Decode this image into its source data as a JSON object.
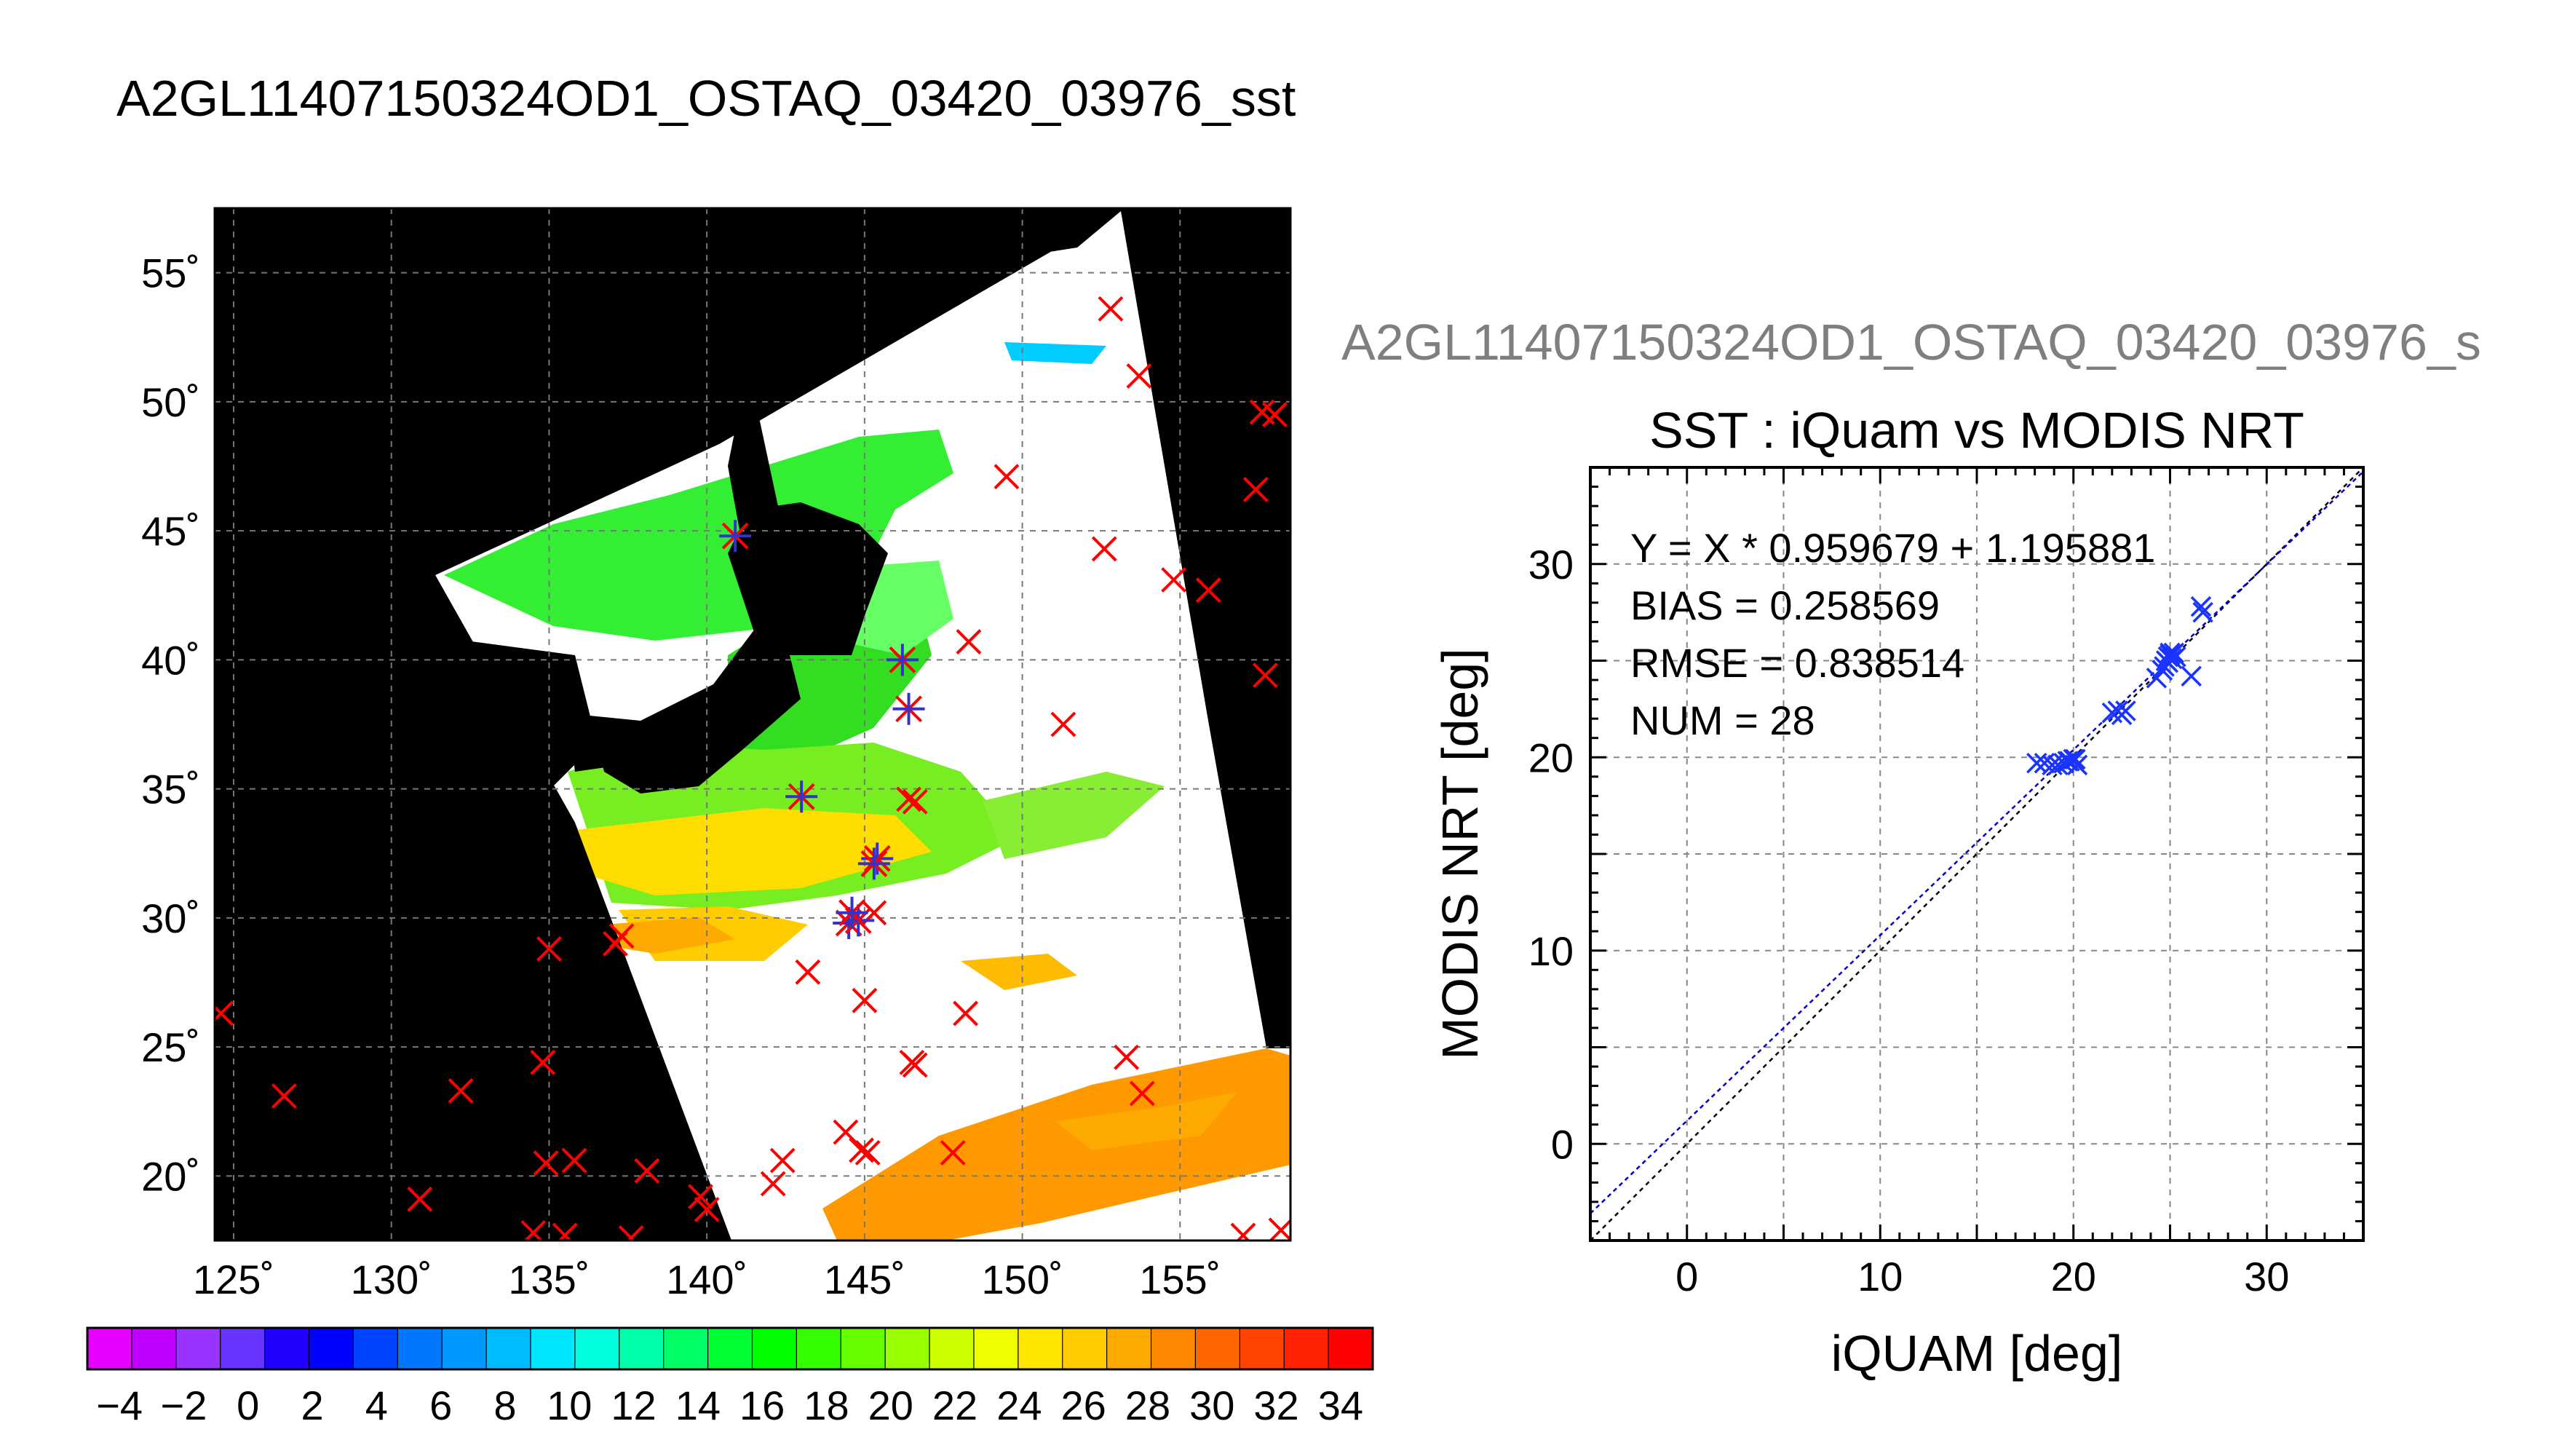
{
  "title": "A2GL11407150324OD1_OSTAQ_03420_03976_sst",
  "map": {
    "lon_ticks": [
      125,
      130,
      135,
      140,
      145,
      150,
      155
    ],
    "lat_ticks": [
      20,
      25,
      30,
      35,
      40,
      45,
      50,
      55
    ],
    "lon_labels": [
      "125˚",
      "130˚",
      "135˚",
      "140˚",
      "145˚",
      "150˚",
      "155˚"
    ],
    "lat_labels": [
      "20˚",
      "25˚",
      "30˚",
      "35˚",
      "40˚",
      "45˚",
      "50˚",
      "55˚"
    ],
    "lon_range": [
      124.4,
      158.5
    ],
    "lat_range": [
      17.5,
      57.5
    ],
    "matched_points": [
      [
        140.9,
        44.8
      ],
      [
        146.2,
        40.0
      ],
      [
        146.4,
        38.1
      ],
      [
        143.0,
        34.7
      ],
      [
        145.4,
        32.3
      ],
      [
        145.3,
        32.1
      ],
      [
        144.5,
        29.8
      ],
      [
        144.8,
        29.9
      ],
      [
        144.6,
        30.2
      ]
    ],
    "unmatched_points": [
      [
        152.8,
        53.6
      ],
      [
        153.7,
        51.0
      ],
      [
        157.6,
        49.6
      ],
      [
        158.0,
        49.5
      ],
      [
        157.4,
        46.6
      ],
      [
        149.5,
        47.1
      ],
      [
        152.6,
        44.3
      ],
      [
        154.8,
        43.1
      ],
      [
        155.9,
        42.7
      ],
      [
        157.7,
        39.4
      ],
      [
        148.3,
        40.7
      ],
      [
        151.3,
        37.5
      ],
      [
        146.4,
        34.6
      ],
      [
        146.6,
        34.5
      ],
      [
        145.3,
        30.2
      ],
      [
        143.2,
        27.9
      ],
      [
        145.0,
        26.8
      ],
      [
        148.2,
        26.3
      ],
      [
        146.5,
        24.4
      ],
      [
        146.6,
        24.3
      ],
      [
        153.3,
        24.6
      ],
      [
        153.8,
        23.2
      ],
      [
        135.0,
        28.8
      ],
      [
        137.3,
        29.3
      ],
      [
        137.1,
        29.0
      ],
      [
        124.6,
        26.3
      ],
      [
        126.6,
        23.1
      ],
      [
        132.2,
        23.3
      ],
      [
        134.8,
        24.4
      ],
      [
        134.9,
        20.5
      ],
      [
        135.8,
        20.6
      ],
      [
        138.1,
        20.2
      ],
      [
        130.9,
        19.1
      ],
      [
        139.8,
        19.2
      ],
      [
        140.0,
        18.7
      ],
      [
        142.4,
        20.6
      ],
      [
        142.1,
        19.7
      ],
      [
        144.4,
        21.7
      ],
      [
        144.9,
        21.0
      ],
      [
        145.1,
        20.9
      ],
      [
        147.8,
        20.9
      ],
      [
        134.5,
        17.8
      ],
      [
        135.5,
        17.7
      ],
      [
        137.6,
        17.6
      ],
      [
        157.0,
        17.7
      ],
      [
        158.2,
        17.9
      ]
    ]
  },
  "colorbar": {
    "labels": [
      "−4",
      "−2",
      "0",
      "2",
      "4",
      "6",
      "8",
      "10",
      "12",
      "14",
      "16",
      "18",
      "20",
      "22",
      "24",
      "26",
      "28",
      "30",
      "32",
      "34"
    ],
    "range": [
      -5,
      35
    ],
    "colors": [
      "#e600ff",
      "#c000ff",
      "#9933ff",
      "#6633ff",
      "#2200ff",
      "#0000ff",
      "#0044ff",
      "#0077ff",
      "#0099ff",
      "#00bbff",
      "#00e6ff",
      "#00ffdd",
      "#00ffaa",
      "#00ff66",
      "#00ff33",
      "#00ff00",
      "#33ff00",
      "#66ff00",
      "#99ff00",
      "#ccff00",
      "#eeff00",
      "#ffe600",
      "#ffcc00",
      "#ffaa00",
      "#ff8800",
      "#ff6600",
      "#ff4400",
      "#ff2200",
      "#ff0000"
    ]
  },
  "chart_data": {
    "type": "scatter",
    "title": "SST : iQuam vs MODIS NRT",
    "title_gray": "A2GL11407150324OD1_OSTAQ_03420_03976_s",
    "xlabel": "iQUAM [deg]",
    "ylabel": "MODIS NRT [deg]",
    "xlim": [
      -5,
      35
    ],
    "ylim": [
      -5,
      35
    ],
    "x_ticks": [
      0,
      10,
      20,
      30
    ],
    "y_ticks": [
      0,
      10,
      20,
      30
    ],
    "x_tick_labels": [
      "0",
      "10",
      "20",
      "30"
    ],
    "y_tick_labels": [
      "0",
      "10",
      "20",
      "30"
    ],
    "grid": true,
    "annotations": [
      "Y = X * 0.959679 + 1.195881",
      "BIAS = 0.258569",
      "RMSE = 0.838514",
      "NUM = 28"
    ],
    "fit": {
      "slope": 0.959679,
      "intercept": 1.195881
    },
    "series": [
      {
        "x": [
          18.1,
          18.5,
          18.9,
          19.2,
          19.5,
          19.7,
          20.0,
          20.1,
          22.0,
          22.3,
          22.5,
          22.7,
          24.3,
          24.6,
          24.8,
          24.9,
          25.0,
          25.0,
          25.1,
          25.2,
          25.3,
          24.7,
          24.9,
          26.1,
          26.6,
          26.7,
          19.8,
          20.2
        ],
        "y": [
          19.7,
          19.7,
          19.6,
          19.6,
          19.7,
          19.8,
          19.9,
          19.9,
          22.3,
          22.4,
          22.2,
          22.4,
          24.1,
          24.5,
          25.0,
          25.2,
          25.4,
          25.3,
          25.1,
          25.4,
          25.2,
          24.7,
          24.9,
          24.2,
          27.8,
          27.5,
          19.8,
          19.6
        ]
      }
    ]
  }
}
